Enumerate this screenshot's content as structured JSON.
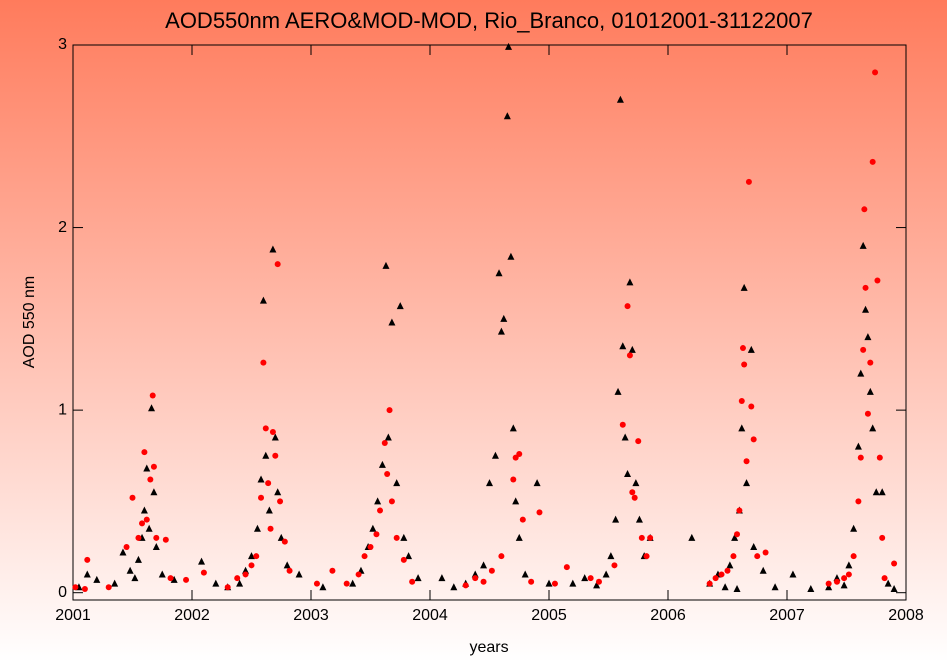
{
  "chart_data": {
    "type": "scatter",
    "title": "AOD550nm AERO&MOD-MOD, Rio_Branco, 01012001-31122007",
    "x_label": "years",
    "y_label": "AOD 550 nm",
    "xlim": [
      2001,
      2008
    ],
    "ylim": [
      -0.04,
      3
    ],
    "xticks": [
      2001,
      2002,
      2003,
      2004,
      2005,
      2006,
      2007,
      2008
    ],
    "yticks": [
      0,
      1,
      2,
      3
    ],
    "series": [
      {
        "color": "#000000",
        "marker": "triangle",
        "x": [
          2001.05,
          2001.12,
          2001.2,
          2001.35,
          2001.42,
          2001.48,
          2001.52,
          2001.55,
          2001.58,
          2001.6,
          2001.62,
          2001.64,
          2001.66,
          2001.68,
          2001.7,
          2001.75,
          2001.85,
          2002.08,
          2002.2,
          2002.3,
          2002.4,
          2002.45,
          2002.5,
          2002.55,
          2002.58,
          2002.6,
          2002.62,
          2002.65,
          2002.68,
          2002.7,
          2002.72,
          2002.75,
          2002.8,
          2002.9,
          2003.1,
          2003.35,
          2003.42,
          2003.48,
          2003.52,
          2003.56,
          2003.6,
          2003.63,
          2003.65,
          2003.68,
          2003.72,
          2003.75,
          2003.78,
          2003.82,
          2003.9,
          2004.1,
          2004.2,
          2004.3,
          2004.38,
          2004.45,
          2004.5,
          2004.55,
          2004.58,
          2004.6,
          2004.62,
          2004.65,
          2004.66,
          2004.68,
          2004.7,
          2004.72,
          2004.75,
          2004.8,
          2004.9,
          2005.0,
          2005.2,
          2005.3,
          2005.4,
          2005.48,
          2005.52,
          2005.56,
          2005.58,
          2005.6,
          2005.62,
          2005.64,
          2005.66,
          2005.68,
          2005.7,
          2005.73,
          2005.76,
          2005.8,
          2005.85,
          2006.2,
          2006.35,
          2006.42,
          2006.48,
          2006.52,
          2006.56,
          2006.58,
          2006.6,
          2006.62,
          2006.64,
          2006.66,
          2006.7,
          2006.72,
          2006.8,
          2006.9,
          2007.05,
          2007.2,
          2007.35,
          2007.42,
          2007.48,
          2007.52,
          2007.56,
          2007.6,
          2007.62,
          2007.64,
          2007.66,
          2007.68,
          2007.7,
          2007.72,
          2007.75,
          2007.8,
          2007.85,
          2007.9
        ],
        "values": [
          0.03,
          0.1,
          0.07,
          0.05,
          0.22,
          0.12,
          0.08,
          0.18,
          0.3,
          0.45,
          0.68,
          0.35,
          1.01,
          0.55,
          0.25,
          0.1,
          0.07,
          0.17,
          0.05,
          0.03,
          0.05,
          0.12,
          0.2,
          0.35,
          0.62,
          1.6,
          0.75,
          0.45,
          1.88,
          0.85,
          0.55,
          0.3,
          0.15,
          0.1,
          0.03,
          0.05,
          0.12,
          0.25,
          0.35,
          0.5,
          0.7,
          1.79,
          0.85,
          1.48,
          0.6,
          1.57,
          0.3,
          0.2,
          0.08,
          0.08,
          0.03,
          0.05,
          0.1,
          0.15,
          0.6,
          0.75,
          1.75,
          1.43,
          1.5,
          2.61,
          2.99,
          1.84,
          0.9,
          0.5,
          0.3,
          0.1,
          0.6,
          0.05,
          0.05,
          0.08,
          0.04,
          0.1,
          0.2,
          0.4,
          1.1,
          2.7,
          1.35,
          0.85,
          0.65,
          1.7,
          1.33,
          0.6,
          0.4,
          0.2,
          0.3,
          0.3,
          0.05,
          0.1,
          0.03,
          0.15,
          0.3,
          0.02,
          0.45,
          0.9,
          1.67,
          0.6,
          1.33,
          0.25,
          0.12,
          0.03,
          0.1,
          0.02,
          0.03,
          0.08,
          0.04,
          0.15,
          0.35,
          0.8,
          1.2,
          1.9,
          1.55,
          1.4,
          1.1,
          0.9,
          0.55,
          0.55,
          0.05,
          0.02
        ]
      },
      {
        "color": "#ff0000",
        "marker": "circle",
        "x": [
          2001.02,
          2001.1,
          2001.12,
          2001.3,
          2001.45,
          2001.5,
          2001.55,
          2001.58,
          2001.6,
          2001.62,
          2001.65,
          2001.67,
          2001.68,
          2001.7,
          2001.78,
          2001.82,
          2001.95,
          2002.1,
          2002.3,
          2002.38,
          2002.45,
          2002.5,
          2002.54,
          2002.58,
          2002.6,
          2002.62,
          2002.64,
          2002.66,
          2002.68,
          2002.7,
          2002.72,
          2002.74,
          2002.78,
          2002.82,
          2003.05,
          2003.18,
          2003.3,
          2003.4,
          2003.45,
          2003.5,
          2003.55,
          2003.58,
          2003.62,
          2003.64,
          2003.66,
          2003.68,
          2003.72,
          2003.78,
          2003.85,
          2004.3,
          2004.38,
          2004.45,
          2004.52,
          2004.6,
          2004.7,
          2004.72,
          2004.75,
          2004.78,
          2004.85,
          2004.92,
          2005.05,
          2005.15,
          2005.35,
          2005.42,
          2005.55,
          2005.62,
          2005.66,
          2005.68,
          2005.7,
          2005.72,
          2005.75,
          2005.78,
          2005.82,
          2005.85,
          2006.35,
          2006.4,
          2006.45,
          2006.5,
          2006.55,
          2006.58,
          2006.6,
          2006.62,
          2006.63,
          2006.64,
          2006.66,
          2006.68,
          2006.7,
          2006.72,
          2006.75,
          2006.82,
          2007.35,
          2007.42,
          2007.48,
          2007.52,
          2007.56,
          2007.6,
          2007.62,
          2007.64,
          2007.65,
          2007.66,
          2007.68,
          2007.7,
          2007.72,
          2007.74,
          2007.76,
          2007.78,
          2007.8,
          2007.82,
          2007.9
        ],
        "values": [
          0.03,
          0.02,
          0.18,
          0.03,
          0.25,
          0.52,
          0.3,
          0.38,
          0.77,
          0.4,
          0.62,
          1.08,
          0.69,
          0.3,
          0.29,
          0.08,
          0.07,
          0.11,
          0.03,
          0.08,
          0.1,
          0.15,
          0.2,
          0.52,
          1.26,
          0.9,
          0.6,
          0.35,
          0.88,
          0.75,
          1.8,
          0.5,
          0.28,
          0.12,
          0.05,
          0.12,
          0.05,
          0.1,
          0.2,
          0.25,
          0.32,
          0.45,
          0.82,
          0.65,
          1.0,
          0.5,
          0.3,
          0.18,
          0.06,
          0.04,
          0.08,
          0.06,
          0.12,
          0.2,
          0.62,
          0.74,
          0.76,
          0.4,
          0.06,
          0.44,
          0.05,
          0.14,
          0.08,
          0.06,
          0.15,
          0.92,
          1.57,
          1.3,
          0.55,
          0.52,
          0.83,
          0.3,
          0.2,
          0.3,
          0.05,
          0.08,
          0.1,
          0.12,
          0.2,
          0.32,
          0.45,
          1.05,
          1.34,
          1.25,
          0.72,
          2.25,
          1.02,
          0.84,
          0.2,
          0.22,
          0.05,
          0.06,
          0.08,
          0.1,
          0.2,
          0.5,
          0.74,
          1.33,
          2.1,
          1.67,
          0.98,
          1.26,
          2.36,
          2.85,
          1.71,
          0.74,
          0.3,
          0.08,
          0.16
        ]
      }
    ]
  }
}
